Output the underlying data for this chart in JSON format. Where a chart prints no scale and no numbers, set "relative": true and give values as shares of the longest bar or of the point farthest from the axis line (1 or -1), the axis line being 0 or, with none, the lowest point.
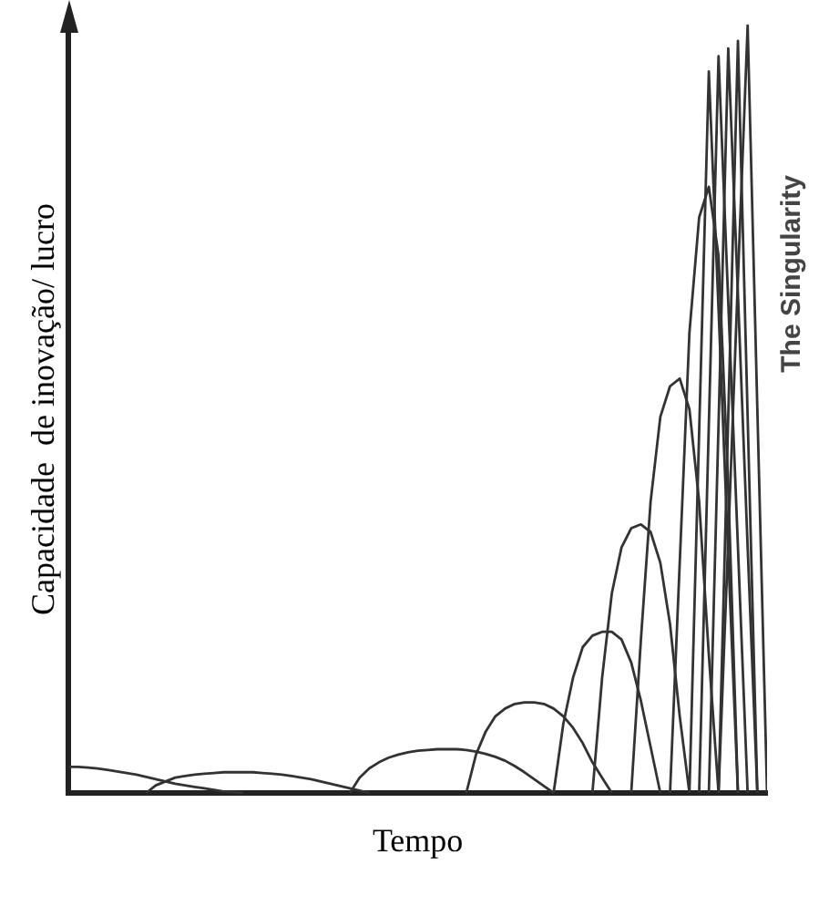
{
  "chart_data": {
    "type": "line",
    "relative": true,
    "xlabel": "Tempo",
    "ylabel": "Capacidade  de inovação/ lucro",
    "annotations": [
      "The Singularity"
    ],
    "legend": false,
    "grid": false,
    "marker": "none",
    "line_style": "solid",
    "categories": [
      null,
      null,
      null,
      null,
      null,
      null,
      null,
      null,
      null,
      null,
      null,
      null,
      null,
      null,
      null,
      null,
      null,
      null,
      null,
      null,
      null,
      null,
      null,
      null,
      null,
      null,
      null,
      null,
      null,
      null,
      null,
      null,
      null,
      null,
      null,
      null,
      null,
      null,
      null,
      null,
      null,
      null,
      null,
      null,
      null,
      null,
      null,
      null,
      null,
      null,
      null,
      null,
      null,
      null,
      null,
      null,
      null,
      null,
      null,
      null,
      null,
      null,
      null,
      null,
      null,
      null,
      null,
      null,
      null,
      null,
      null,
      null,
      null
    ],
    "series": [
      {
        "color": "#333333",
        "values": [
          0.034,
          0.034,
          0.033,
          0.032,
          0.03,
          0.028,
          0.026,
          0.024,
          0.021,
          0.018,
          0.015,
          0.012,
          0.01,
          0.008,
          0.006,
          0.004,
          0.002,
          0.001,
          0,
          null,
          null,
          null,
          null,
          null,
          null,
          null,
          null,
          null,
          null,
          null,
          null,
          null,
          null,
          null,
          null,
          null,
          null,
          null,
          null,
          null,
          null,
          null,
          null,
          null,
          null,
          null,
          null,
          null,
          null,
          null,
          null,
          null,
          null,
          null,
          null,
          null,
          null,
          null,
          null,
          null,
          null,
          null,
          null,
          null,
          null,
          null,
          null,
          null,
          null,
          null,
          null,
          null,
          null
        ]
      },
      {
        "color": "#333333",
        "values": [
          null,
          null,
          null,
          null,
          null,
          null,
          null,
          null,
          0,
          0.01,
          0.015,
          0.02,
          0.022,
          0.024,
          0.025,
          0.026,
          0.027,
          0.027,
          0.027,
          0.027,
          0.026,
          0.025,
          0.024,
          0.022,
          0.02,
          0.018,
          0.015,
          0.012,
          0.009,
          0.006,
          0.003,
          0,
          null,
          null,
          null,
          null,
          null,
          null,
          null,
          null,
          null,
          null,
          null,
          null,
          null,
          null,
          null,
          null,
          null,
          null,
          null,
          null,
          null,
          null,
          null,
          null,
          null,
          null,
          null,
          null,
          null,
          null,
          null,
          null,
          null,
          null,
          null,
          null,
          null,
          null,
          null,
          null,
          null
        ]
      },
      {
        "color": "#333333",
        "values": [
          null,
          null,
          null,
          null,
          null,
          null,
          null,
          null,
          null,
          null,
          null,
          null,
          null,
          null,
          null,
          null,
          null,
          null,
          null,
          null,
          null,
          null,
          null,
          null,
          null,
          null,
          null,
          null,
          null,
          0,
          0.02,
          0.032,
          0.04,
          0.046,
          0.05,
          0.053,
          0.055,
          0.056,
          0.057,
          0.057,
          0.057,
          0.056,
          0.054,
          0.051,
          0.047,
          0.042,
          0.035,
          0.027,
          0.018,
          0.009,
          0,
          null,
          null,
          null,
          null,
          null,
          null,
          null,
          null,
          null,
          null,
          null,
          null,
          null,
          null,
          null,
          null,
          null,
          null,
          null,
          null,
          null,
          null
        ]
      },
      {
        "color": "#333333",
        "values": [
          null,
          null,
          null,
          null,
          null,
          null,
          null,
          null,
          null,
          null,
          null,
          null,
          null,
          null,
          null,
          null,
          null,
          null,
          null,
          null,
          null,
          null,
          null,
          null,
          null,
          null,
          null,
          null,
          null,
          null,
          null,
          null,
          null,
          null,
          null,
          null,
          null,
          null,
          null,
          null,
          null,
          0,
          0.05,
          0.08,
          0.1,
          0.11,
          0.116,
          0.118,
          0.118,
          0.116,
          0.11,
          0.1,
          0.085,
          0.065,
          0.04,
          0.02,
          0,
          null,
          null,
          null,
          null,
          null,
          null,
          null,
          null,
          null,
          null,
          null,
          null,
          null,
          null,
          null,
          null
        ]
      },
      {
        "color": "#333333",
        "values": [
          null,
          null,
          null,
          null,
          null,
          null,
          null,
          null,
          null,
          null,
          null,
          null,
          null,
          null,
          null,
          null,
          null,
          null,
          null,
          null,
          null,
          null,
          null,
          null,
          null,
          null,
          null,
          null,
          null,
          null,
          null,
          null,
          null,
          null,
          null,
          null,
          null,
          null,
          null,
          null,
          null,
          null,
          null,
          null,
          null,
          null,
          null,
          null,
          null,
          null,
          0,
          0.09,
          0.15,
          0.19,
          0.205,
          0.21,
          0.21,
          0.2,
          0.17,
          0.12,
          0.06,
          0,
          null,
          null,
          null,
          null,
          null,
          null,
          null,
          null,
          null,
          null,
          null
        ]
      },
      {
        "color": "#333333",
        "values": [
          null,
          null,
          null,
          null,
          null,
          null,
          null,
          null,
          null,
          null,
          null,
          null,
          null,
          null,
          null,
          null,
          null,
          null,
          null,
          null,
          null,
          null,
          null,
          null,
          null,
          null,
          null,
          null,
          null,
          null,
          null,
          null,
          null,
          null,
          null,
          null,
          null,
          null,
          null,
          null,
          null,
          null,
          null,
          null,
          null,
          null,
          null,
          null,
          null,
          null,
          null,
          null,
          null,
          null,
          0,
          0.15,
          0.26,
          0.32,
          0.345,
          0.35,
          0.34,
          0.3,
          0.22,
          0.1,
          0,
          null,
          null,
          null,
          null,
          null,
          null,
          null,
          null
        ]
      },
      {
        "color": "#333333",
        "values": [
          null,
          null,
          null,
          null,
          null,
          null,
          null,
          null,
          null,
          null,
          null,
          null,
          null,
          null,
          null,
          null,
          null,
          null,
          null,
          null,
          null,
          null,
          null,
          null,
          null,
          null,
          null,
          null,
          null,
          null,
          null,
          null,
          null,
          null,
          null,
          null,
          null,
          null,
          null,
          null,
          null,
          null,
          null,
          null,
          null,
          null,
          null,
          null,
          null,
          null,
          null,
          null,
          null,
          null,
          null,
          null,
          null,
          null,
          0,
          0.2,
          0.38,
          0.49,
          0.53,
          0.54,
          0.5,
          0.38,
          0.18,
          0,
          null,
          null,
          null,
          null,
          null
        ]
      },
      {
        "color": "#333333",
        "values": [
          null,
          null,
          null,
          null,
          null,
          null,
          null,
          null,
          null,
          null,
          null,
          null,
          null,
          null,
          null,
          null,
          null,
          null,
          null,
          null,
          null,
          null,
          null,
          null,
          null,
          null,
          null,
          null,
          null,
          null,
          null,
          null,
          null,
          null,
          null,
          null,
          null,
          null,
          null,
          null,
          null,
          null,
          null,
          null,
          null,
          null,
          null,
          null,
          null,
          null,
          null,
          null,
          null,
          null,
          null,
          null,
          null,
          null,
          null,
          null,
          null,
          null,
          0,
          0.3,
          0.6,
          0.75,
          0.79,
          0.7,
          0.4,
          0,
          null,
          null,
          null
        ]
      },
      {
        "color": "#333333",
        "values": [
          null,
          null,
          null,
          null,
          null,
          null,
          null,
          null,
          null,
          null,
          null,
          null,
          null,
          null,
          null,
          null,
          null,
          null,
          null,
          null,
          null,
          null,
          null,
          null,
          null,
          null,
          null,
          null,
          null,
          null,
          null,
          null,
          null,
          null,
          null,
          null,
          null,
          null,
          null,
          null,
          null,
          null,
          null,
          null,
          null,
          null,
          null,
          null,
          null,
          null,
          null,
          null,
          null,
          null,
          null,
          null,
          null,
          null,
          null,
          null,
          null,
          null,
          null,
          null,
          0,
          0.47,
          0.94,
          0.63,
          0.31,
          0,
          null,
          null,
          null
        ]
      },
      {
        "color": "#333333",
        "values": [
          null,
          null,
          null,
          null,
          null,
          null,
          null,
          null,
          null,
          null,
          null,
          null,
          null,
          null,
          null,
          null,
          null,
          null,
          null,
          null,
          null,
          null,
          null,
          null,
          null,
          null,
          null,
          null,
          null,
          null,
          null,
          null,
          null,
          null,
          null,
          null,
          null,
          null,
          null,
          null,
          null,
          null,
          null,
          null,
          null,
          null,
          null,
          null,
          null,
          null,
          null,
          null,
          null,
          null,
          null,
          null,
          null,
          null,
          null,
          null,
          null,
          null,
          null,
          null,
          null,
          0,
          0.48,
          0.96,
          0.64,
          0.32,
          0,
          null,
          null
        ]
      },
      {
        "color": "#333333",
        "values": [
          null,
          null,
          null,
          null,
          null,
          null,
          null,
          null,
          null,
          null,
          null,
          null,
          null,
          null,
          null,
          null,
          null,
          null,
          null,
          null,
          null,
          null,
          null,
          null,
          null,
          null,
          null,
          null,
          null,
          null,
          null,
          null,
          null,
          null,
          null,
          null,
          null,
          null,
          null,
          null,
          null,
          null,
          null,
          null,
          null,
          null,
          null,
          null,
          null,
          null,
          null,
          null,
          null,
          null,
          null,
          null,
          null,
          null,
          null,
          null,
          null,
          null,
          null,
          null,
          null,
          null,
          0,
          0.48,
          0.97,
          0.65,
          0.32,
          0,
          null
        ]
      },
      {
        "color": "#333333",
        "values": [
          null,
          null,
          null,
          null,
          null,
          null,
          null,
          null,
          null,
          null,
          null,
          null,
          null,
          null,
          null,
          null,
          null,
          null,
          null,
          null,
          null,
          null,
          null,
          null,
          null,
          null,
          null,
          null,
          null,
          null,
          null,
          null,
          null,
          null,
          null,
          null,
          null,
          null,
          null,
          null,
          null,
          null,
          null,
          null,
          null,
          null,
          null,
          null,
          null,
          null,
          null,
          null,
          null,
          null,
          null,
          null,
          null,
          null,
          null,
          null,
          null,
          null,
          null,
          null,
          null,
          null,
          null,
          0,
          0.49,
          0.98,
          0.49,
          0,
          null
        ]
      },
      {
        "color": "#333333",
        "values": [
          null,
          null,
          null,
          null,
          null,
          null,
          null,
          null,
          null,
          null,
          null,
          null,
          null,
          null,
          null,
          null,
          null,
          null,
          null,
          null,
          null,
          null,
          null,
          null,
          null,
          null,
          null,
          null,
          null,
          null,
          null,
          null,
          null,
          null,
          null,
          null,
          null,
          null,
          null,
          null,
          null,
          null,
          null,
          null,
          null,
          null,
          null,
          null,
          null,
          null,
          null,
          null,
          null,
          null,
          null,
          null,
          null,
          null,
          null,
          null,
          null,
          null,
          null,
          null,
          null,
          null,
          null,
          0,
          0.33,
          0.67,
          1,
          0.5,
          0
        ]
      }
    ]
  }
}
